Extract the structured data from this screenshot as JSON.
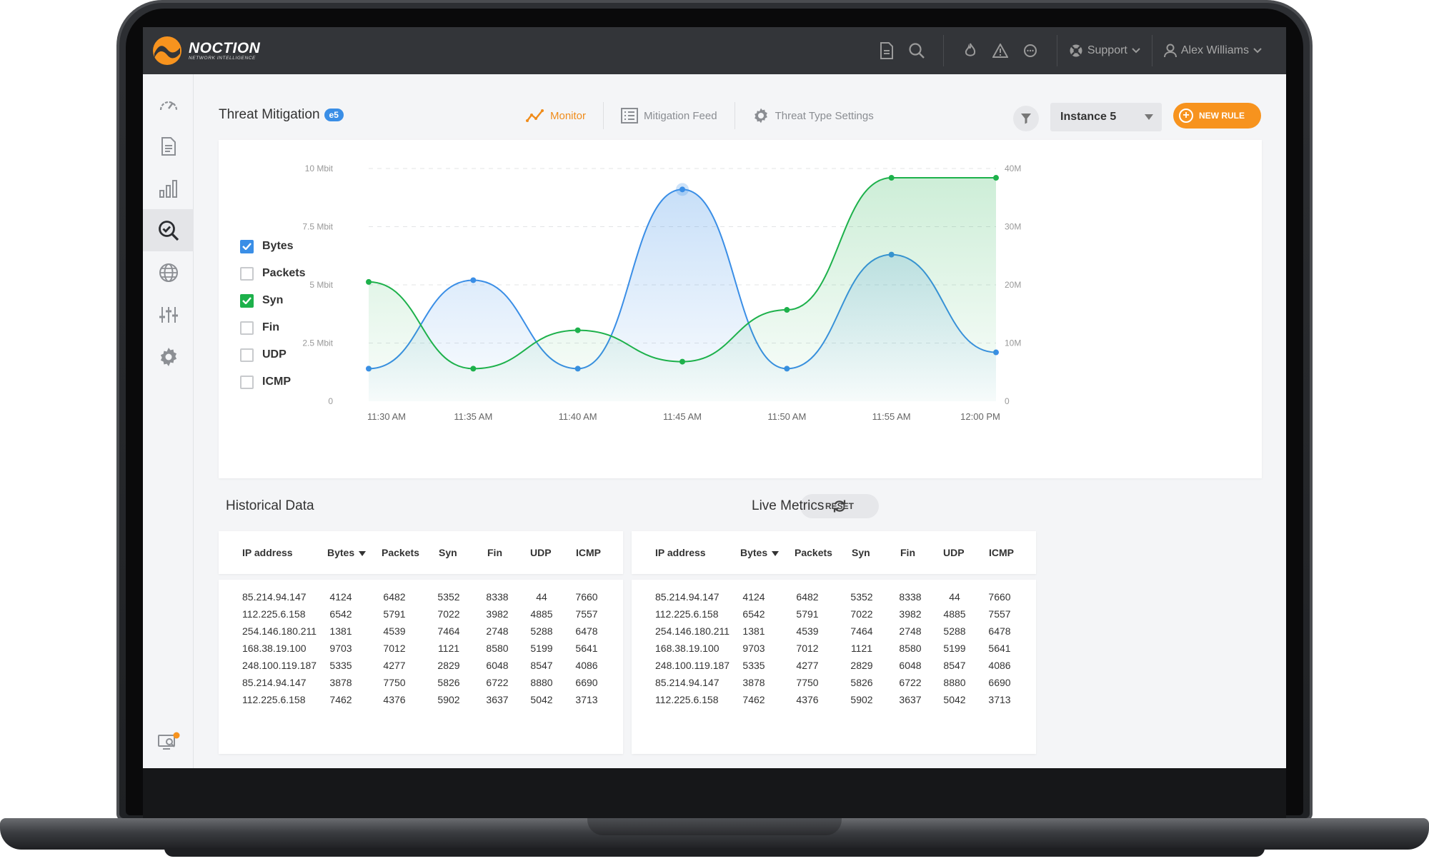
{
  "app": {
    "logo_name": "NOCTION",
    "logo_sub": "NETWORK INTELLIGENCE",
    "support_label": "Support",
    "user_label": "Alex Williams"
  },
  "colors": {
    "accent": "#f7931e",
    "blue": "#3a8ee6",
    "green": "#1db14b",
    "topbar": "#333539"
  },
  "page": {
    "title": "Threat Mitigation",
    "badge": "e5"
  },
  "tabs": [
    {
      "label": "Monitor",
      "icon": "line-chart-icon",
      "active": true
    },
    {
      "label": "Mitigation Feed",
      "icon": "list-icon",
      "active": false
    },
    {
      "label": "Threat Type Settings",
      "icon": "gear-icon",
      "active": false
    }
  ],
  "instance": {
    "selected": "Instance 5"
  },
  "new_rule_label": "NEW RULE",
  "legend": [
    {
      "label": "Bytes",
      "checked": true,
      "color": "blue"
    },
    {
      "label": "Packets",
      "checked": false
    },
    {
      "label": "Syn",
      "checked": true,
      "color": "green"
    },
    {
      "label": "Fin",
      "checked": false
    },
    {
      "label": "UDP",
      "checked": false
    },
    {
      "label": "ICMP",
      "checked": false
    }
  ],
  "chart_data": {
    "type": "area",
    "x": [
      "11:30 AM",
      "11:35 AM",
      "11:40 AM",
      "11:45 AM",
      "11:50 AM",
      "11:55 AM",
      "12:00 PM"
    ],
    "y_left_ticks": [
      "0",
      "2.5 Mbit",
      "5 Mbit",
      "7.5 Mbit",
      "10 Mbit"
    ],
    "y_right_ticks": [
      "0",
      "10M",
      "20M",
      "30M",
      "40M"
    ],
    "ylim_left": [
      0,
      10
    ],
    "ylim_right": [
      0,
      40
    ],
    "grid": true,
    "series": [
      {
        "name": "Bytes",
        "axis": "left",
        "color": "#3a8ee6",
        "values": [
          1.4,
          5.2,
          1.4,
          9.1,
          1.4,
          6.3,
          2.1
        ]
      },
      {
        "name": "Syn",
        "axis": "right",
        "color": "#1db14b",
        "values": [
          20.5,
          5.6,
          12.2,
          6.8,
          15.7,
          38.4,
          38.4
        ]
      }
    ]
  },
  "historical": {
    "title": "Historical Data",
    "reset_label": "RESET"
  },
  "live": {
    "title": "Live Metrics"
  },
  "table_columns": [
    "IP address",
    "Bytes",
    "Packets",
    "Syn",
    "Fin",
    "UDP",
    "ICMP"
  ],
  "table_rows": [
    [
      "85.214.94.147",
      "4124",
      "6482",
      "5352",
      "8338",
      "44",
      "7660"
    ],
    [
      "112.225.6.158",
      "6542",
      "5791",
      "7022",
      "3982",
      "4885",
      "7557"
    ],
    [
      "254.146.180.211",
      "1381",
      "4539",
      "7464",
      "2748",
      "5288",
      "6478"
    ],
    [
      "168.38.19.100",
      "9703",
      "7012",
      "1121",
      "8580",
      "5199",
      "5641"
    ],
    [
      "248.100.119.187",
      "5335",
      "4277",
      "2829",
      "6048",
      "8547",
      "4086"
    ],
    [
      "85.214.94.147",
      "3878",
      "7750",
      "5826",
      "6722",
      "8880",
      "6690"
    ],
    [
      "112.225.6.158",
      "7462",
      "4376",
      "5902",
      "3637",
      "5042",
      "3713"
    ]
  ]
}
